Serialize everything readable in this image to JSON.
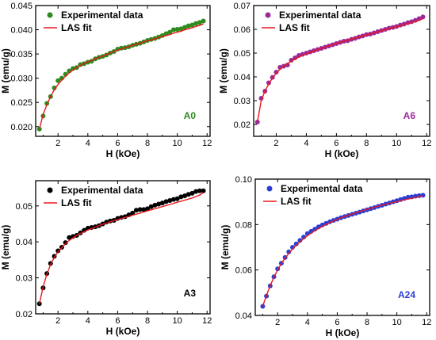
{
  "chart_data": [
    {
      "type": "scatter",
      "sample_label": "A0",
      "sample_color": "#2e8b1e",
      "xlabel": "H (kOe)",
      "ylabel": "M (emu/g)",
      "xlim": [
        0.5,
        12.2
      ],
      "ylim": [
        0.018,
        0.045
      ],
      "xticks": [
        2,
        4,
        6,
        8,
        10,
        12
      ],
      "yticks": [
        0.02,
        0.025,
        0.03,
        0.035,
        0.04,
        0.045
      ],
      "ytick_labels": [
        "0.020",
        "0.025",
        "0.030",
        "0.035",
        "0.040",
        "0.045"
      ],
      "legend_position": "top-left",
      "series": [
        {
          "name": "Experimental data",
          "marker": "circle",
          "color": "#2e8b1e",
          "x": [
            0.75,
            1.0,
            1.25,
            1.5,
            1.75,
            2.0,
            2.25,
            2.5,
            2.75,
            3.0,
            3.25,
            3.5,
            3.75,
            4.0,
            4.25,
            4.5,
            4.75,
            5.0,
            5.25,
            5.5,
            5.75,
            6.0,
            6.25,
            6.5,
            6.75,
            7.0,
            7.25,
            7.5,
            7.75,
            8.0,
            8.25,
            8.5,
            8.75,
            9.0,
            9.25,
            9.5,
            9.75,
            10.0,
            10.25,
            10.5,
            10.75,
            11.0,
            11.25,
            11.5,
            11.75
          ],
          "y": [
            0.0195,
            0.0222,
            0.0248,
            0.0262,
            0.028,
            0.0295,
            0.03,
            0.0308,
            0.0315,
            0.032,
            0.0322,
            0.0328,
            0.033,
            0.0333,
            0.0335,
            0.034,
            0.0343,
            0.0345,
            0.0348,
            0.0352,
            0.0355,
            0.036,
            0.0362,
            0.0363,
            0.0365,
            0.0368,
            0.037,
            0.0372,
            0.0375,
            0.0378,
            0.038,
            0.0382,
            0.0385,
            0.0388,
            0.0392,
            0.0395,
            0.04,
            0.0401,
            0.0402,
            0.0405,
            0.0408,
            0.041,
            0.0413,
            0.0415,
            0.0418
          ]
        },
        {
          "name": "LAS fit",
          "marker": "line",
          "color": "#e8191e",
          "x": [
            0.75,
            1.0,
            1.25,
            1.5,
            1.75,
            2.0,
            2.25,
            2.5,
            2.75,
            3.0,
            3.25,
            3.5,
            3.75,
            4.0,
            4.25,
            4.5,
            4.75,
            5.0,
            5.25,
            5.5,
            5.75,
            6.0,
            6.25,
            6.5,
            6.75,
            7.0,
            7.25,
            7.5,
            7.75,
            8.0,
            8.25,
            8.5,
            8.75,
            9.0,
            9.25,
            9.5,
            9.75,
            10.0,
            10.25,
            10.5,
            10.75,
            11.0,
            11.25,
            11.5,
            11.75
          ],
          "y": [
            0.0195,
            0.0225,
            0.0245,
            0.0262,
            0.0276,
            0.0287,
            0.0296,
            0.0304,
            0.0311,
            0.0317,
            0.0322,
            0.0326,
            0.033,
            0.0334,
            0.0337,
            0.034,
            0.0343,
            0.0346,
            0.0349,
            0.0352,
            0.0355,
            0.0358,
            0.036,
            0.0363,
            0.0365,
            0.0368,
            0.037,
            0.0372,
            0.0375,
            0.0377,
            0.0379,
            0.0381,
            0.0384,
            0.0386,
            0.0388,
            0.039,
            0.0393,
            0.0395,
            0.0397,
            0.04,
            0.0402,
            0.0404,
            0.0407,
            0.0409,
            0.0412
          ]
        }
      ]
    },
    {
      "type": "scatter",
      "sample_label": "A6",
      "sample_color": "#9b2a9b",
      "xlabel": "H (kOe)",
      "ylabel": "M (emu/g)",
      "xlim": [
        0.5,
        12.2
      ],
      "ylim": [
        0.015,
        0.07
      ],
      "xticks": [
        2,
        4,
        6,
        8,
        10,
        12
      ],
      "yticks": [
        0.02,
        0.03,
        0.04,
        0.05,
        0.06,
        0.07
      ],
      "ytick_labels": [
        "0.02",
        "0.03",
        "0.04",
        "0.05",
        "0.06",
        "0.07"
      ],
      "legend_position": "top-left",
      "series": [
        {
          "name": "Experimental data",
          "marker": "circle",
          "color": "#9b2a9b",
          "x": [
            0.75,
            1.0,
            1.25,
            1.5,
            1.75,
            2.0,
            2.25,
            2.5,
            2.75,
            3.0,
            3.25,
            3.5,
            3.75,
            4.0,
            4.25,
            4.5,
            4.75,
            5.0,
            5.25,
            5.5,
            5.75,
            6.0,
            6.25,
            6.5,
            6.75,
            7.0,
            7.25,
            7.5,
            7.75,
            8.0,
            8.25,
            8.5,
            8.75,
            9.0,
            9.25,
            9.5,
            9.75,
            10.0,
            10.25,
            10.5,
            10.75,
            11.0,
            11.25,
            11.5,
            11.75
          ],
          "y": [
            0.021,
            0.031,
            0.034,
            0.0375,
            0.0398,
            0.042,
            0.044,
            0.0445,
            0.045,
            0.047,
            0.048,
            0.049,
            0.0495,
            0.05,
            0.0505,
            0.051,
            0.0515,
            0.052,
            0.0525,
            0.053,
            0.0535,
            0.054,
            0.0545,
            0.055,
            0.0552,
            0.0558,
            0.0562,
            0.0568,
            0.0572,
            0.0578,
            0.058,
            0.0585,
            0.059,
            0.0595,
            0.06,
            0.0605,
            0.0608,
            0.0612,
            0.0618,
            0.0622,
            0.0628,
            0.0632,
            0.0638,
            0.0645,
            0.0652
          ]
        },
        {
          "name": "LAS fit",
          "marker": "line",
          "color": "#e8191e",
          "x": [
            0.75,
            1.0,
            1.25,
            1.5,
            1.75,
            2.0,
            2.25,
            2.5,
            2.75,
            3.0,
            3.25,
            3.5,
            3.75,
            4.0,
            4.25,
            4.5,
            4.75,
            5.0,
            5.25,
            5.5,
            5.75,
            6.0,
            6.25,
            6.5,
            6.75,
            7.0,
            7.25,
            7.5,
            7.75,
            8.0,
            8.25,
            8.5,
            8.75,
            9.0,
            9.25,
            9.5,
            9.75,
            10.0,
            10.25,
            10.5,
            10.75,
            11.0,
            11.25,
            11.5,
            11.75
          ],
          "y": [
            0.021,
            0.03,
            0.034,
            0.037,
            0.0395,
            0.0415,
            0.0432,
            0.0445,
            0.0456,
            0.0466,
            0.0475,
            0.0483,
            0.049,
            0.0497,
            0.0503,
            0.0509,
            0.0515,
            0.052,
            0.0525,
            0.053,
            0.0535,
            0.054,
            0.0545,
            0.055,
            0.0554,
            0.0559,
            0.0563,
            0.0568,
            0.0572,
            0.0577,
            0.0581,
            0.0585,
            0.059,
            0.0594,
            0.0598,
            0.0602,
            0.0607,
            0.0611,
            0.0615,
            0.062,
            0.0624,
            0.0628,
            0.0633,
            0.0638,
            0.0645
          ]
        }
      ]
    },
    {
      "type": "scatter",
      "sample_label": "A3",
      "sample_color": "#000000",
      "xlabel": "H (kOe)",
      "ylabel": "M (emu/g)",
      "xlim": [
        0.5,
        12.2
      ],
      "ylim": [
        0.02,
        0.057
      ],
      "xticks": [
        2,
        4,
        6,
        8,
        10,
        12
      ],
      "yticks": [
        0.02,
        0.03,
        0.04,
        0.05
      ],
      "ytick_labels": [
        "0.02",
        "0.03",
        "0.04",
        "0.05"
      ],
      "legend_position": "top-left",
      "series": [
        {
          "name": "Experimental data",
          "marker": "circle",
          "color": "#000000",
          "x": [
            0.75,
            1.0,
            1.25,
            1.5,
            1.75,
            2.0,
            2.25,
            2.5,
            2.75,
            3.0,
            3.25,
            3.5,
            3.75,
            4.0,
            4.25,
            4.5,
            4.75,
            5.0,
            5.25,
            5.5,
            5.75,
            6.0,
            6.25,
            6.5,
            6.75,
            7.0,
            7.25,
            7.5,
            7.75,
            8.0,
            8.25,
            8.5,
            8.75,
            9.0,
            9.25,
            9.5,
            9.75,
            10.0,
            10.25,
            10.5,
            10.75,
            11.0,
            11.25,
            11.5,
            11.75
          ],
          "y": [
            0.0228,
            0.0272,
            0.0312,
            0.034,
            0.036,
            0.0375,
            0.0385,
            0.0398,
            0.0412,
            0.0415,
            0.0418,
            0.0425,
            0.0432,
            0.0438,
            0.044,
            0.0442,
            0.0445,
            0.045,
            0.0455,
            0.0458,
            0.046,
            0.0465,
            0.0468,
            0.047,
            0.0475,
            0.048,
            0.0488,
            0.049,
            0.049,
            0.0492,
            0.0498,
            0.0502,
            0.0505,
            0.0508,
            0.0512,
            0.0515,
            0.0518,
            0.052,
            0.0525,
            0.0528,
            0.0532,
            0.0535,
            0.054,
            0.0542,
            0.0542
          ]
        },
        {
          "name": "LAS fit",
          "marker": "line",
          "color": "#e8191e",
          "x": [
            0.75,
            1.0,
            1.25,
            1.5,
            1.75,
            2.0,
            2.25,
            2.5,
            2.75,
            3.0,
            3.25,
            3.5,
            3.75,
            4.0,
            4.25,
            4.5,
            4.75,
            5.0,
            5.25,
            5.5,
            5.75,
            6.0,
            6.25,
            6.5,
            6.75,
            7.0,
            7.25,
            7.5,
            7.75,
            8.0,
            8.25,
            8.5,
            8.75,
            9.0,
            9.25,
            9.5,
            9.75,
            10.0,
            10.25,
            10.5,
            10.75,
            11.0,
            11.25,
            11.5,
            11.75
          ],
          "y": [
            0.0228,
            0.0275,
            0.031,
            0.0337,
            0.0357,
            0.0372,
            0.0384,
            0.0395,
            0.0404,
            0.0411,
            0.0418,
            0.0423,
            0.0428,
            0.0433,
            0.0437,
            0.0441,
            0.0445,
            0.0449,
            0.0452,
            0.0456,
            0.0459,
            0.0462,
            0.0465,
            0.0468,
            0.0471,
            0.0474,
            0.0477,
            0.048,
            0.0483,
            0.0486,
            0.0489,
            0.0492,
            0.0495,
            0.0498,
            0.0501,
            0.0504,
            0.0507,
            0.051,
            0.0513,
            0.0516,
            0.0519,
            0.0522,
            0.0526,
            0.053,
            0.0537
          ]
        }
      ]
    },
    {
      "type": "scatter",
      "sample_label": "A24",
      "sample_color": "#2b3fd6",
      "xlabel": "H (kOe)",
      "ylabel": "M (emu/g)",
      "xlim": [
        0.5,
        12.2
      ],
      "ylim": [
        0.04,
        0.1
      ],
      "xticks": [
        2,
        4,
        6,
        8,
        10,
        12
      ],
      "yticks": [
        0.04,
        0.06,
        0.08,
        0.1
      ],
      "ytick_labels": [
        "0.04",
        "0.06",
        "0.08",
        "0.10"
      ],
      "legend_position": "top-left",
      "series": [
        {
          "name": "Experimental data",
          "marker": "circle",
          "color": "#2b3fd6",
          "x": [
            1.0,
            1.25,
            1.5,
            1.75,
            2.0,
            2.25,
            2.5,
            2.75,
            3.0,
            3.25,
            3.5,
            3.75,
            4.0,
            4.25,
            4.5,
            4.75,
            5.0,
            5.25,
            5.5,
            5.75,
            6.0,
            6.25,
            6.5,
            6.75,
            7.0,
            7.25,
            7.5,
            7.75,
            8.0,
            8.25,
            8.5,
            8.75,
            9.0,
            9.25,
            9.5,
            9.75,
            10.0,
            10.25,
            10.5,
            10.75,
            11.0,
            11.25,
            11.5,
            11.75
          ],
          "y": [
            0.044,
            0.0485,
            0.053,
            0.057,
            0.0605,
            0.063,
            0.0655,
            0.068,
            0.07,
            0.0715,
            0.073,
            0.0745,
            0.076,
            0.077,
            0.078,
            0.079,
            0.0798,
            0.0805,
            0.0812,
            0.0818,
            0.0824,
            0.083,
            0.0835,
            0.084,
            0.0845,
            0.085,
            0.0855,
            0.086,
            0.0865,
            0.087,
            0.0875,
            0.088,
            0.0885,
            0.089,
            0.0895,
            0.09,
            0.0905,
            0.091,
            0.0915,
            0.092,
            0.0922,
            0.0925,
            0.0927,
            0.0929
          ]
        },
        {
          "name": "LAS fit",
          "marker": "line",
          "color": "#e8191e",
          "x": [
            1.0,
            1.25,
            1.5,
            1.75,
            2.0,
            2.25,
            2.5,
            2.75,
            3.0,
            3.25,
            3.5,
            3.75,
            4.0,
            4.25,
            4.5,
            4.75,
            5.0,
            5.25,
            5.5,
            5.75,
            6.0,
            6.25,
            6.5,
            6.75,
            7.0,
            7.25,
            7.5,
            7.75,
            8.0,
            8.25,
            8.5,
            8.75,
            9.0,
            9.25,
            9.5,
            9.75,
            10.0,
            10.25,
            10.5,
            10.75,
            11.0,
            11.25,
            11.5,
            11.75
          ],
          "y": [
            0.044,
            0.0488,
            0.053,
            0.0568,
            0.06,
            0.0628,
            0.0652,
            0.0673,
            0.0692,
            0.0709,
            0.0724,
            0.0738,
            0.0751,
            0.0762,
            0.0773,
            0.0783,
            0.0792,
            0.08,
            0.0808,
            0.0815,
            0.0822,
            0.0829,
            0.0835,
            0.0841,
            0.0846,
            0.0852,
            0.0857,
            0.0862,
            0.0867,
            0.0872,
            0.0876,
            0.0881,
            0.0885,
            0.0889,
            0.0893,
            0.0897,
            0.0901,
            0.0905,
            0.0909,
            0.0912,
            0.0916,
            0.0919,
            0.0923,
            0.0927
          ]
        }
      ]
    }
  ]
}
